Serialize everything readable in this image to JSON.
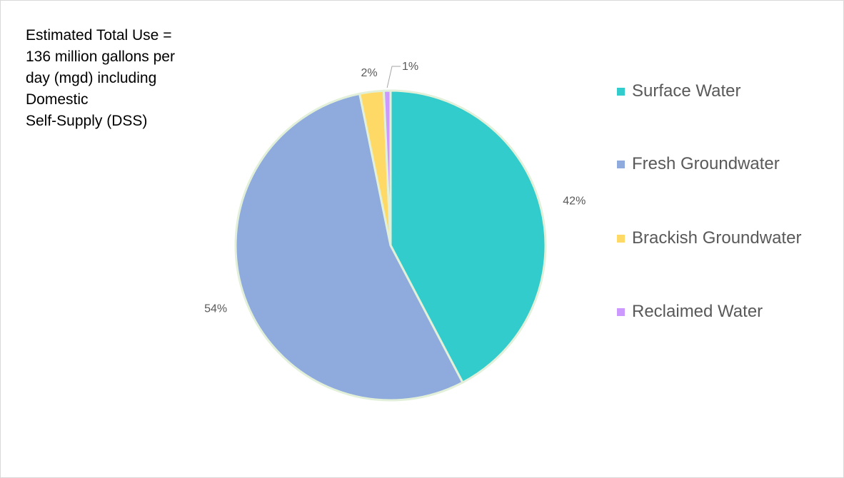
{
  "annotation": {
    "lines": [
      "Estimated Total Use =",
      "136 million gallons per",
      "day (mgd) including",
      "Domestic",
      "Self-Supply (DSS)"
    ]
  },
  "colors": {
    "surface": "#33cccc",
    "fresh": "#8faadc",
    "brackish": "#ffd966",
    "reclaimed": "#cc99ff",
    "slice_border": "#e2f0d9",
    "label_text": "#595959",
    "leader_line": "#a6a6a6"
  },
  "chart_data": {
    "type": "pie",
    "title": "",
    "start_angle_deg": 0,
    "direction": "clockwise",
    "slices": [
      {
        "name": "Surface Water",
        "value": 42.3,
        "label": "42%",
        "color": "#33cccc"
      },
      {
        "name": "Reclaimed Water",
        "value": 0.7,
        "label": "1%",
        "color": "#cc99ff",
        "order_index": 3
      },
      {
        "name": "Fresh Groundwater",
        "value": 54.5,
        "label": "54%",
        "color": "#8faadc"
      },
      {
        "name": "Brackish Groundwater",
        "value": 2.5,
        "label": "2%",
        "color": "#ffd966"
      }
    ],
    "legend": {
      "position": "right",
      "entries": [
        {
          "name": "Surface Water",
          "color": "#33cccc"
        },
        {
          "name": "Fresh Groundwater",
          "color": "#8faadc"
        },
        {
          "name": "Brackish Groundwater",
          "color": "#ffd966"
        },
        {
          "name": "Reclaimed Water",
          "color": "#cc99ff"
        }
      ]
    }
  }
}
